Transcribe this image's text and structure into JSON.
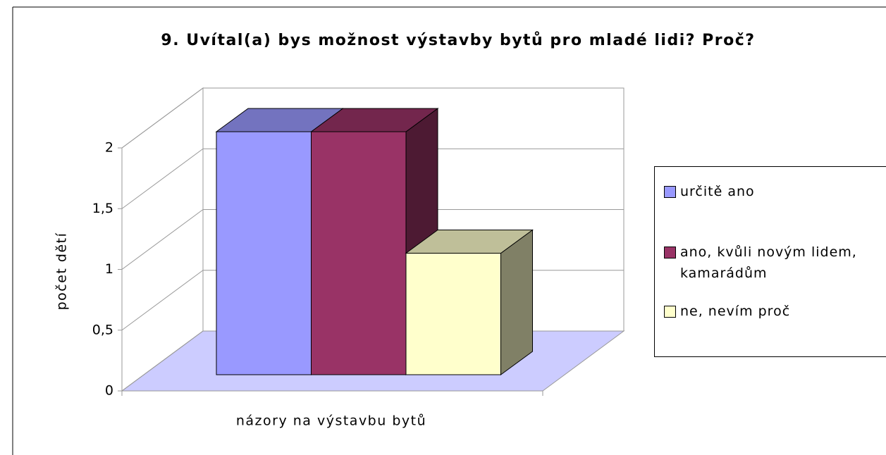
{
  "chart_data": {
    "type": "bar3d",
    "title": "9. Uvítal(a) bys možnost výstavby bytů pro mladé lidi? Proč?",
    "xlabel": "názory na výstavbu bytů",
    "ylabel": "počet dětí",
    "categories": [
      "názory na výstavbu bytů"
    ],
    "series": [
      {
        "name": "určitě ano",
        "color": "#9999ff",
        "values": [
          2
        ]
      },
      {
        "name": "ano, kvůli novým lidem, kamarádům",
        "color": "#993366",
        "values": [
          2
        ]
      },
      {
        "name": "ne, nevím proč",
        "color": "#ffffcc",
        "values": [
          1
        ]
      }
    ],
    "ylim": [
      0,
      2
    ],
    "yticks": [
      0,
      {
        "value": 0.5,
        "label": "0,5"
      },
      1,
      {
        "value": 1.5,
        "label": "1,5"
      },
      2
    ],
    "grid": true,
    "legend": "right"
  }
}
